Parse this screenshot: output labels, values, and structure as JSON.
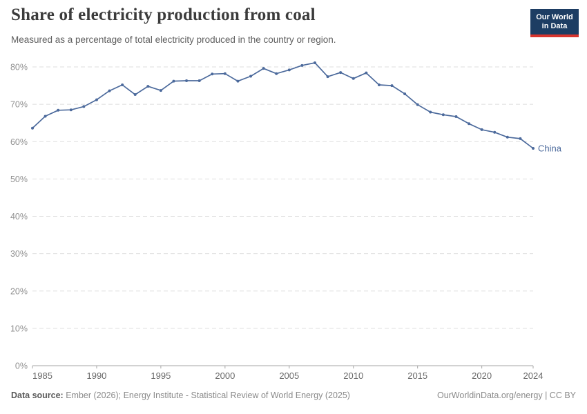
{
  "header": {
    "title": "Share of electricity production from coal",
    "subtitle": "Measured as a percentage of total electricity produced in the country or region."
  },
  "logo": {
    "line1": "Our World",
    "line2": "in Data"
  },
  "chart_data": {
    "type": "line",
    "title": "Share of electricity production from coal",
    "xlabel": "",
    "ylabel": "",
    "ylim": [
      0,
      80
    ],
    "yticks": [
      0,
      10,
      20,
      30,
      40,
      50,
      60,
      70,
      80
    ],
    "ytick_suffix": "%",
    "xticks": [
      1985,
      1990,
      1995,
      2000,
      2005,
      2010,
      2015,
      2020,
      2024
    ],
    "grid": "horizontal-dashed",
    "legend_position": "end-of-line",
    "x": [
      1985,
      1986,
      1987,
      1988,
      1989,
      1990,
      1991,
      1992,
      1993,
      1994,
      1995,
      1996,
      1997,
      1998,
      1999,
      2000,
      2001,
      2002,
      2003,
      2004,
      2005,
      2006,
      2007,
      2008,
      2009,
      2010,
      2011,
      2012,
      2013,
      2014,
      2015,
      2016,
      2017,
      2018,
      2019,
      2020,
      2021,
      2022,
      2023,
      2024
    ],
    "series": [
      {
        "name": "China",
        "color": "#4C6A9C",
        "values": [
          63.6,
          66.8,
          68.4,
          68.5,
          69.4,
          71.2,
          73.6,
          75.2,
          72.6,
          74.8,
          73.7,
          76.2,
          76.3,
          76.3,
          78.1,
          78.2,
          76.2,
          77.5,
          79.6,
          78.2,
          79.2,
          80.4,
          81.1,
          77.4,
          78.5,
          76.9,
          78.4,
          75.2,
          75.0,
          72.8,
          69.9,
          67.9,
          67.2,
          66.7,
          64.8,
          63.2,
          62.5,
          61.2,
          60.8,
          58.2
        ]
      }
    ]
  },
  "footer": {
    "datasource_label": "Data source:",
    "datasource_text": " Ember (2026); Energy Institute - Statistical Review of World Energy (2025)",
    "link_text": "OurWorldinData.org/energy",
    "separator": " | ",
    "license_text": "CC BY"
  },
  "colors": {
    "line": "#4C6A9C",
    "grid": "#dedede",
    "axis": "#a5a5a5",
    "logo_bg": "#1d3d63",
    "logo_accent": "#d8352e"
  }
}
